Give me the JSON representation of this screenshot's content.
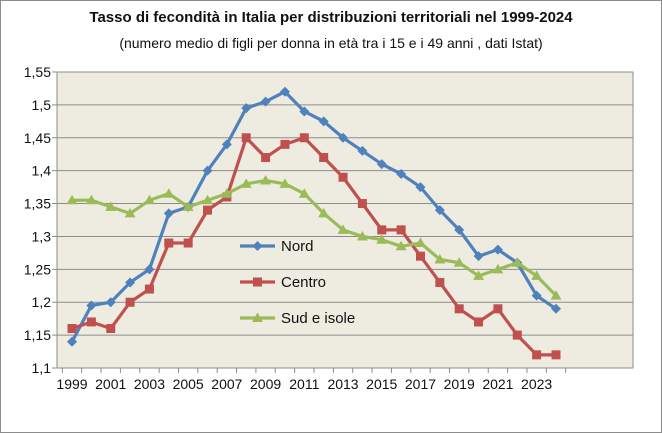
{
  "chart_data": {
    "type": "line",
    "title": "Tasso di fecondità in Italia per distribuzioni territoriali nel 1999-2024",
    "subtitle": "(numero medio di figli per donna in età tra i 15 e i 49 anni , dati Istat)",
    "xlabel": "",
    "ylabel": "",
    "x": [
      1999,
      2000,
      2001,
      2002,
      2003,
      2004,
      2005,
      2006,
      2007,
      2008,
      2009,
      2010,
      2011,
      2012,
      2013,
      2014,
      2015,
      2016,
      2017,
      2018,
      2019,
      2020,
      2021,
      2022,
      2023,
      2024
    ],
    "x_tick_labels": [
      "1999",
      "2001",
      "2003",
      "2005",
      "2007",
      "2009",
      "2011",
      "2013",
      "2015",
      "2017",
      "2019",
      "2021",
      "2023"
    ],
    "y_tick_labels": [
      "1,1",
      "1,15",
      "1,2",
      "1,25",
      "1,3",
      "1,35",
      "1,4",
      "1,45",
      "1,5",
      "1,55"
    ],
    "ylim": [
      1.1,
      1.55
    ],
    "grid": "horizontal",
    "legend_position": "center",
    "series": [
      {
        "name": "Nord",
        "color": "#4f81bd",
        "marker": "diamond",
        "values": [
          1.14,
          1.195,
          1.2,
          1.23,
          1.25,
          1.335,
          1.345,
          1.4,
          1.44,
          1.495,
          1.505,
          1.52,
          1.49,
          1.475,
          1.45,
          1.43,
          1.41,
          1.395,
          1.375,
          1.34,
          1.31,
          1.27,
          1.28,
          1.26,
          1.21,
          1.19
        ]
      },
      {
        "name": "Centro",
        "color": "#c0504d",
        "marker": "square",
        "values": [
          1.16,
          1.17,
          1.16,
          1.2,
          1.22,
          1.29,
          1.29,
          1.34,
          1.36,
          1.45,
          1.42,
          1.44,
          1.45,
          1.42,
          1.39,
          1.35,
          1.31,
          1.31,
          1.27,
          1.23,
          1.19,
          1.17,
          1.19,
          1.15,
          1.12,
          1.12
        ]
      },
      {
        "name": "Sud e isole",
        "color": "#9bbb59",
        "marker": "triangle",
        "values": [
          1.355,
          1.355,
          1.345,
          1.335,
          1.355,
          1.365,
          1.345,
          1.355,
          1.365,
          1.38,
          1.385,
          1.38,
          1.365,
          1.335,
          1.31,
          1.3,
          1.295,
          1.285,
          1.29,
          1.265,
          1.26,
          1.24,
          1.25,
          1.26,
          1.24,
          1.21
        ]
      }
    ]
  }
}
